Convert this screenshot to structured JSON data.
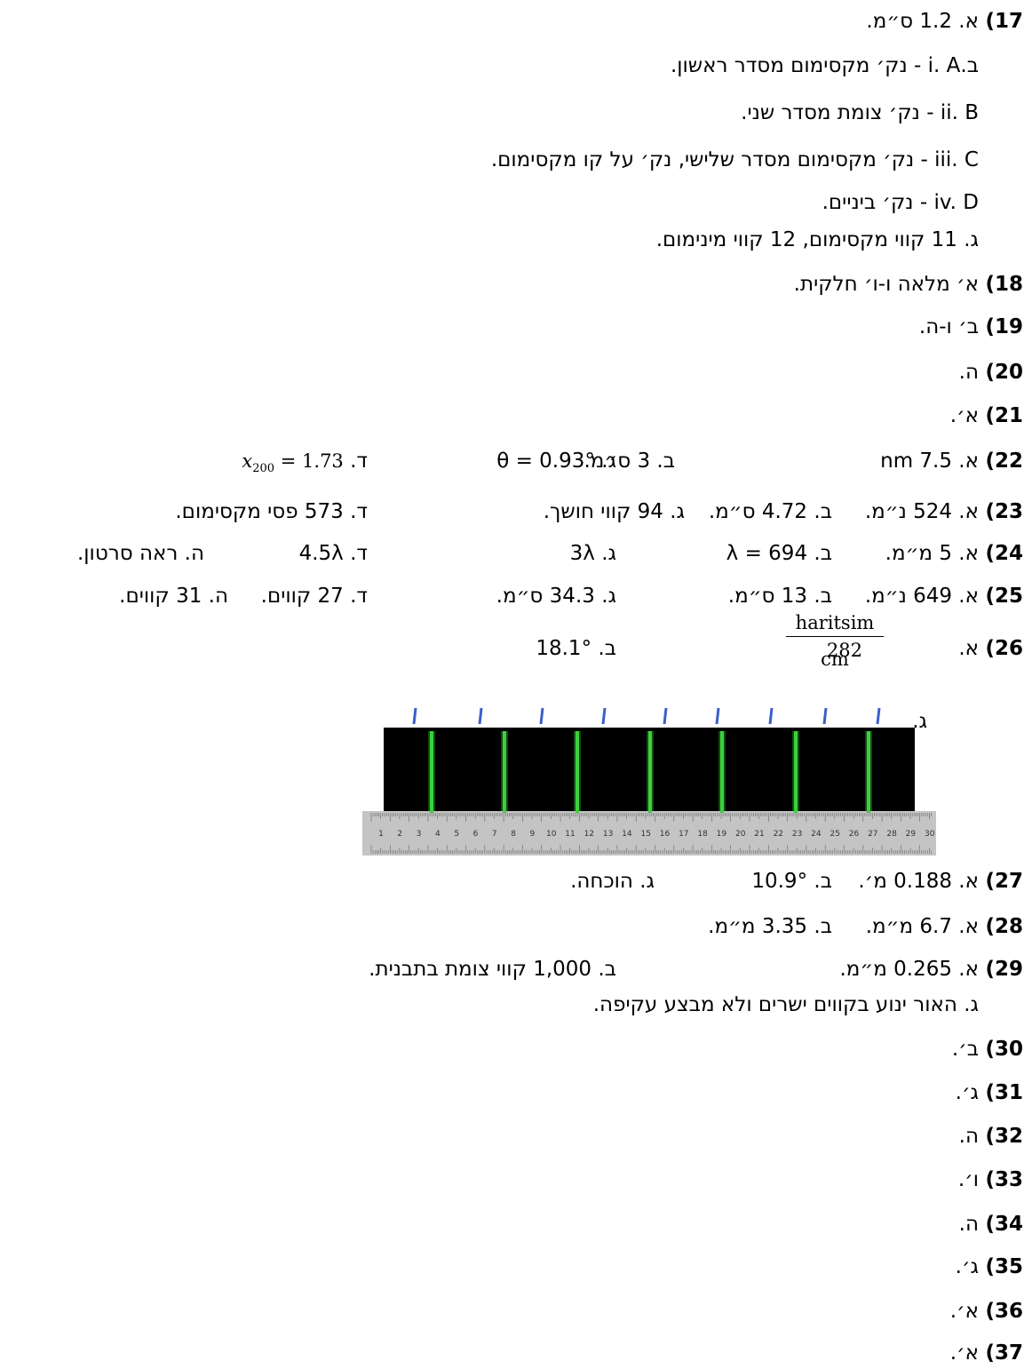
{
  "answers": {
    "a17": {
      "num": "17)",
      "a": "א. 1.2 ס״מ.",
      "b_i": "ב.i. A - נק׳ מקסימום מסדר ראשון.",
      "b_ii": "ii. B - נק׳ צומת מסדר שני.",
      "b_iii": "iii. C - נק׳ מקסימום מסדר שלישי, נק׳ על קו מקסימום.",
      "b_iv": "iv. D - נק׳ ביניים.",
      "c": "ג. 11 קווי מקסימום, 12 קווי מינימום."
    },
    "a18": {
      "num": "18)",
      "text": "א׳ מלאה ו-ו׳ חלקית."
    },
    "a19": {
      "num": "19)",
      "text": "ב׳ ו-ה."
    },
    "a20": {
      "num": "20)",
      "text": "ה."
    },
    "a21": {
      "num": "21)",
      "text": "א׳."
    },
    "a22": {
      "num": "22)",
      "a": "א. 7.5 nm",
      "b": "ב. 3 ס״מ.",
      "c": "ג. θ = 0.93°",
      "d_label": "ד.",
      "d_expr": "x",
      "d_sub": "200",
      "d_val": " = 1.73"
    },
    "a23": {
      "num": "23)",
      "a": "א. 524 נ״מ.",
      "b": "ב. 4.72 ס״מ.",
      "c": "ג. 94 קווי חושך.",
      "d": "ד. 573 פסי מקסימום."
    },
    "a24": {
      "num": "24)",
      "a": "א. 5 מ״מ.",
      "b": "ב. λ = 694",
      "c": "ג. 3λ",
      "d": "ד. 4.5λ",
      "e": "ה. ראה סרטון."
    },
    "a25": {
      "num": "25)",
      "a": "א. 649 נ״מ.",
      "b": "ב. 13 ס״מ.",
      "c": "ג. 34.3 ס״מ.",
      "d": "ד. 27 קווים.",
      "e": "ה. 31 קווים."
    },
    "a26": {
      "num": "26)",
      "a_label": "א.",
      "a_val": "282",
      "a_num": "haritsim",
      "a_den": "cm",
      "b": "ב. 18.1°",
      "c": "ג."
    },
    "a27": {
      "num": "27)",
      "a": "א. 0.188 מ׳.",
      "b": "ב. 10.9°",
      "c": "ג. הוכחה."
    },
    "a28": {
      "num": "28)",
      "a": "א. 6.7 מ״מ.",
      "b": "ב. 3.35 מ״מ."
    },
    "a29": {
      "num": "29)",
      "a": "א. 0.265 מ״מ.",
      "b": "ב. 1,000 קווי צומת בתבנית.",
      "c": "ג. האור ינוע בקווים ישרים ולא מבצע עקיפה."
    },
    "a30": {
      "num": "30)",
      "text": "ב׳."
    },
    "a31": {
      "num": "31)",
      "text": "ג׳."
    },
    "a32": {
      "num": "32)",
      "text": "ה."
    },
    "a33": {
      "num": "33)",
      "text": "ו׳."
    },
    "a34": {
      "num": "34)",
      "text": "ה."
    },
    "a35": {
      "num": "35)",
      "text": "ג׳."
    },
    "a36": {
      "num": "36)",
      "text": "א׳."
    },
    "a37": {
      "num": "37)",
      "text": "א׳."
    }
  },
  "spectrum_image": {
    "ruler_labels": [
      "1",
      "2",
      "3",
      "4",
      "5",
      "6",
      "7",
      "8",
      "9",
      "10",
      "11",
      "12",
      "13",
      "14",
      "15",
      "16",
      "17",
      "18",
      "19",
      "20",
      "21",
      "22",
      "23",
      "24",
      "25",
      "26",
      "27",
      "28",
      "29",
      "30"
    ],
    "line_color": "#3cd13c",
    "marker_color": "#3a5fc8"
  }
}
